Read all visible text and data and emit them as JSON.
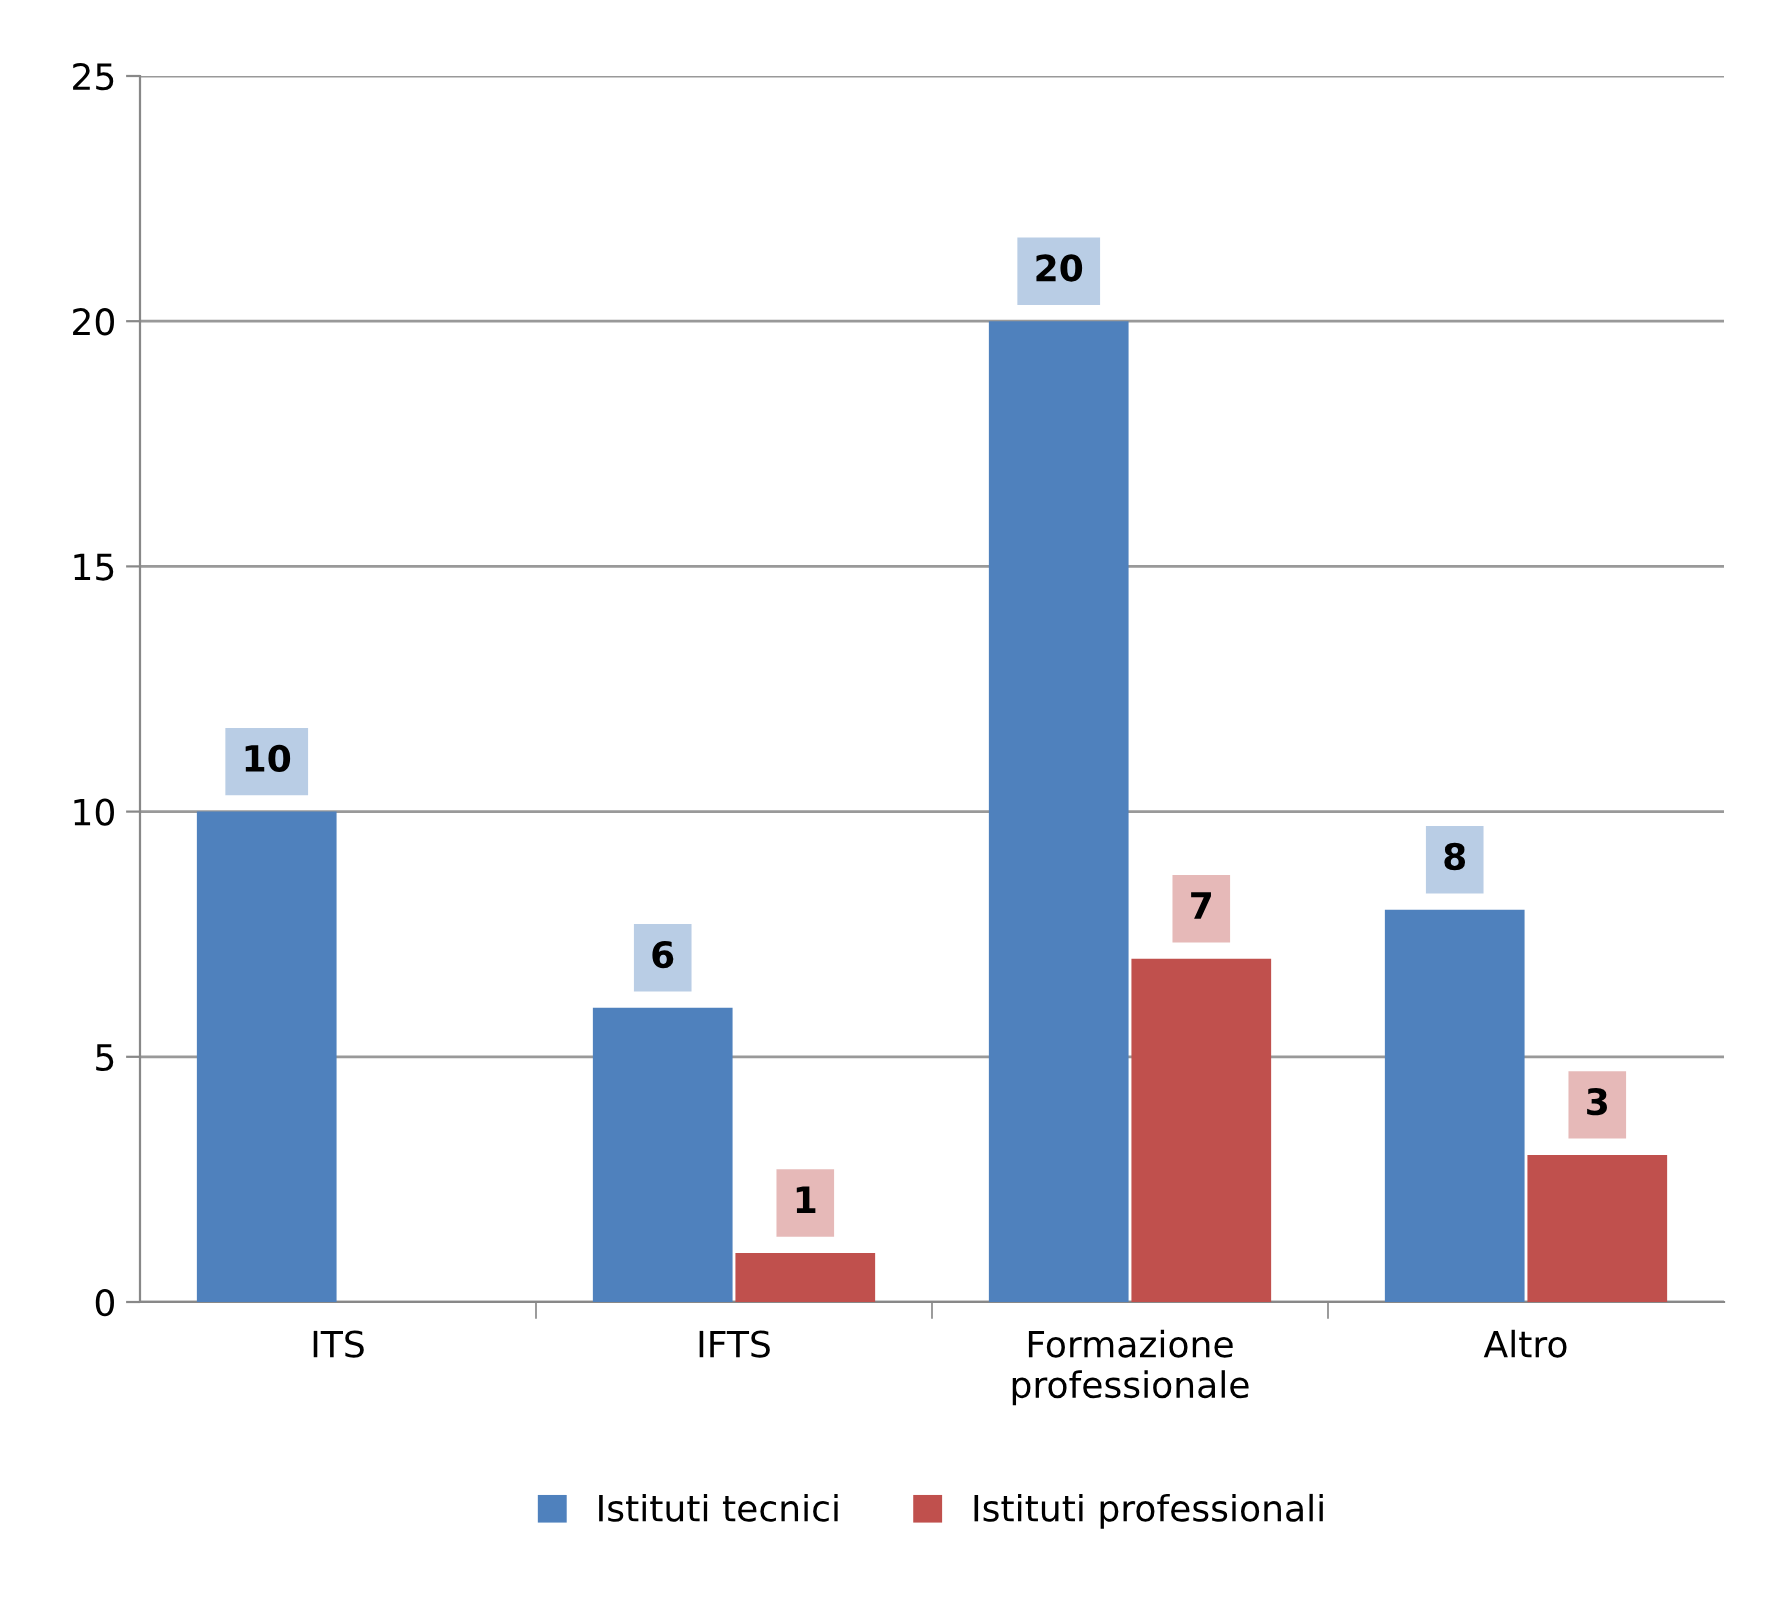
{
  "chart_data": {
    "type": "bar",
    "categories": [
      "ITS",
      "IFTS",
      "Formazione\nprofessionale",
      "Altro"
    ],
    "series": [
      {
        "name": "Istituti tecnici",
        "color": "#4f81bd",
        "values": [
          10,
          6,
          20,
          8
        ]
      },
      {
        "name": "Istituti professionali",
        "color": "#c0504d",
        "values": [
          null,
          1,
          7,
          3
        ]
      }
    ],
    "ylim": [
      0,
      25
    ],
    "yticks": [
      0,
      5,
      10,
      15,
      20,
      25
    ],
    "grid": "y",
    "legend": "bottom",
    "data_labels": true
  }
}
